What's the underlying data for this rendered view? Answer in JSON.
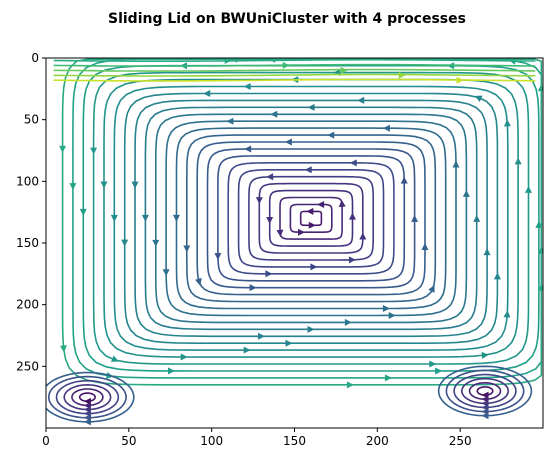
{
  "chart_data": {
    "type": "streamplot",
    "title": "Sliding Lid on BWUniCluster with 4 processes",
    "xlabel": "",
    "ylabel": "",
    "xlim": [
      0,
      300
    ],
    "ylim": [
      300,
      0
    ],
    "y_inverted": true,
    "x_ticks": [
      0,
      50,
      100,
      150,
      200,
      250
    ],
    "y_ticks": [
      0,
      50,
      100,
      150,
      200,
      250
    ],
    "colormap": "viridis",
    "grid": false,
    "legend": "none",
    "primary_vortex_center": [
      160,
      130
    ],
    "secondary_vortices": [
      {
        "name": "bottom-left",
        "center": [
          25,
          275
        ]
      },
      {
        "name": "bottom-right",
        "center": [
          265,
          270
        ]
      }
    ]
  }
}
